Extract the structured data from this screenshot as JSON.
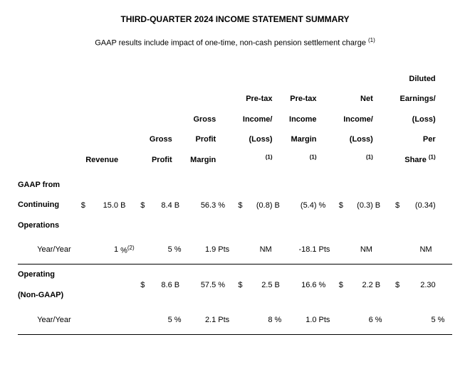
{
  "title": "THIRD-QUARTER 2024 INCOME STATEMENT SUMMARY",
  "subtitle": "GAAP results include impact of one-time, non-cash pension settlement charge ",
  "subtitle_sup": "(1)",
  "columns": {
    "c0": "",
    "c1": "Revenue",
    "c2": "Gross Profit",
    "c3": "Gross Profit Margin",
    "c4_l1": "Pre-tax",
    "c4_l2": "Income/",
    "c4_l3": "(Loss) ",
    "c5_l1": "Pre-tax",
    "c5_l2": "Income",
    "c5_l3": "Margin ",
    "c6_l1": "Net",
    "c6_l2": "Income/",
    "c6_l3": "(Loss) ",
    "c7_l1": "Diluted",
    "c7_l2": "Earnings/",
    "c7_l3": "(Loss) Per",
    "c7_l4": "Share ",
    "sup1": "(1)"
  },
  "gaap": {
    "label_l1": "GAAP from",
    "label_l2": "Continuing",
    "label_l3": "Operations",
    "rev_sym": "$",
    "rev": "15.0",
    "rev_u": "B",
    "gp_sym": "$",
    "gp": "8.4",
    "gp_u": "B",
    "gpm": "56.3",
    "gpm_u": "%",
    "pti_sym": "$",
    "pti": "(0.8)",
    "pti_u": "B",
    "ptm": "(5.4)",
    "ptm_u": "%",
    "ni_sym": "$",
    "ni": "(0.3)",
    "ni_u": "B",
    "eps_sym": "$",
    "eps": "(0.34)"
  },
  "gaap_yy": {
    "label": "Year/Year",
    "rev": "1",
    "rev_u": "%",
    "rev_sup": "(2)",
    "gp": "5",
    "gp_u": "%",
    "gpm": "1.9",
    "gpm_u": "Pts",
    "pti": "NM",
    "ptm": "-18.1",
    "ptm_u": "Pts",
    "ni": "NM",
    "eps": "NM"
  },
  "nongaap": {
    "label_l1": "Operating",
    "label_l2": "(Non-GAAP)",
    "gp_sym": "$",
    "gp": "8.6",
    "gp_u": "B",
    "gpm": "57.5",
    "gpm_u": "%",
    "pti_sym": "$",
    "pti": "2.5",
    "pti_u": "B",
    "ptm": "16.6",
    "ptm_u": "%",
    "ni_sym": "$",
    "ni": "2.2",
    "ni_u": "B",
    "eps_sym": "$",
    "eps": "2.30"
  },
  "nongaap_yy": {
    "label": "Year/Year",
    "gp": "5",
    "gp_u": "%",
    "gpm": "2.1",
    "gpm_u": "Pts",
    "pti": "8",
    "pti_u": "%",
    "ptm": "1.0",
    "ptm_u": "Pts",
    "ni": "6",
    "ni_u": "%",
    "eps": "5",
    "eps_u": "%"
  },
  "style": {
    "background": "#ffffff",
    "text": "#000000",
    "border": "#000000",
    "font_family": "Arial, Helvetica, sans-serif",
    "title_fontsize": 12,
    "body_fontsize": 11
  }
}
